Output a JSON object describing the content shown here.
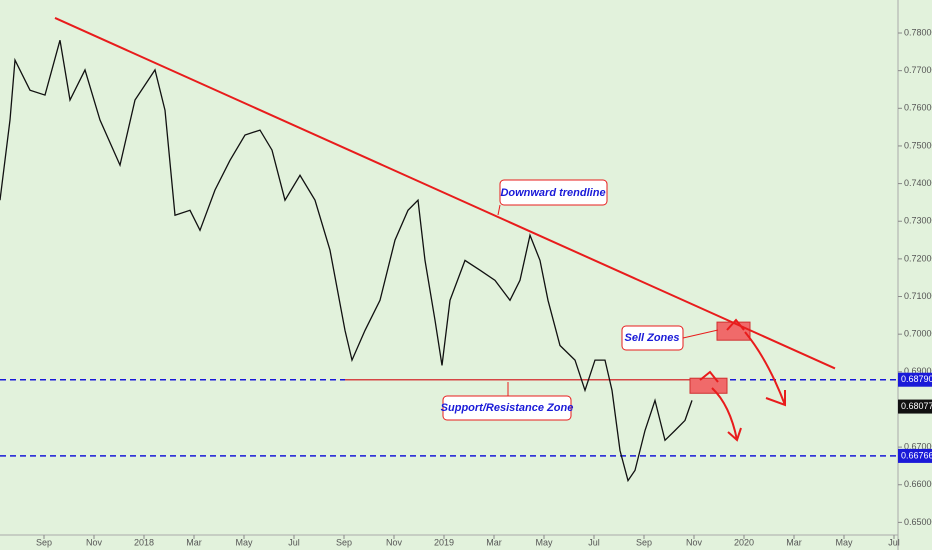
{
  "chart_data": {
    "type": "line",
    "x": [
      -1.76,
      -1.36,
      -1.16,
      -0.56,
      0.04,
      0.64,
      1.04,
      1.64,
      2.24,
      3.04,
      3.64,
      4.44,
      4.84,
      5.24,
      5.84,
      6.24,
      6.84,
      7.44,
      8.04,
      8.64,
      9.12,
      9.64,
      10.24,
      10.84,
      11.44,
      12.04,
      12.32,
      12.84,
      13.44,
      14.04,
      14.56,
      14.96,
      15.24,
      15.64,
      15.92,
      16.24,
      16.84,
      17.44,
      18.04,
      18.64,
      19.04,
      19.44,
      19.84,
      20.16,
      20.64,
      21.24,
      21.64,
      22.04,
      22.44,
      22.72,
      23.04,
      23.36,
      23.64,
      24.04,
      24.44,
      24.84,
      25.24,
      25.64,
      25.92
    ],
    "series": [
      {
        "color": "#111111",
        "values": [
          0.7356,
          0.7569,
          0.7728,
          0.7648,
          0.7635,
          0.7781,
          0.7622,
          0.7702,
          0.7569,
          0.7449,
          0.7622,
          0.7702,
          0.7595,
          0.7316,
          0.7329,
          0.7276,
          0.7383,
          0.7462,
          0.7529,
          0.7542,
          0.7489,
          0.7356,
          0.7422,
          0.7356,
          0.7223,
          0.701,
          0.6931,
          0.701,
          0.709,
          0.725,
          0.7329,
          0.7356,
          0.7196,
          0.7037,
          0.6917,
          0.709,
          0.7196,
          0.717,
          0.7143,
          0.709,
          0.7143,
          0.7263,
          0.7196,
          0.709,
          0.697,
          0.6931,
          0.6851,
          0.6931,
          0.6931,
          0.6851,
          0.6691,
          0.6611,
          0.6638,
          0.6744,
          0.6824,
          0.6718,
          0.6744,
          0.6771,
          0.6824
        ]
      }
    ],
    "xlim": [
      -1.76,
      34.16
    ],
    "xticks": [
      {
        "value": 0,
        "label": "Sep"
      },
      {
        "value": 2,
        "label": "Nov"
      },
      {
        "value": 4,
        "label": "2018"
      },
      {
        "value": 6,
        "label": "Mar"
      },
      {
        "value": 8,
        "label": "May"
      },
      {
        "value": 10,
        "label": "Jul"
      },
      {
        "value": 12,
        "label": "Sep"
      },
      {
        "value": 14,
        "label": "Nov"
      },
      {
        "value": 16,
        "label": "2019"
      },
      {
        "value": 18,
        "label": "Mar"
      },
      {
        "value": 20,
        "label": "May"
      },
      {
        "value": 22,
        "label": "Jul"
      },
      {
        "value": 24,
        "label": "Sep"
      },
      {
        "value": 26,
        "label": "Nov"
      },
      {
        "value": 28,
        "label": "2020"
      },
      {
        "value": 30,
        "label": "Mar"
      },
      {
        "value": 32,
        "label": "May"
      },
      {
        "value": 34,
        "label": "Jul"
      }
    ],
    "ylim": [
      0.64665,
      0.78877
    ],
    "yticks": [
      {
        "value": 0.65,
        "label": "0.65000"
      },
      {
        "value": 0.66,
        "label": "0.66000"
      },
      {
        "value": 0.67,
        "label": "0.67000"
      },
      {
        "value": 0.68,
        "label": "0.68000"
      },
      {
        "value": 0.69,
        "label": "0.69000"
      },
      {
        "value": 0.7,
        "label": "0.70000"
      },
      {
        "value": 0.71,
        "label": "0.71000"
      },
      {
        "value": 0.72,
        "label": "0.72000"
      },
      {
        "value": 0.73,
        "label": "0.73000"
      },
      {
        "value": 0.74,
        "label": "0.74000"
      },
      {
        "value": 0.75,
        "label": "0.75000"
      },
      {
        "value": 0.76,
        "label": "0.76000"
      },
      {
        "value": 0.77,
        "label": "0.77000"
      },
      {
        "value": 0.78,
        "label": "0.78000"
      }
    ],
    "levels": [
      {
        "value": 0.6879,
        "label": "0.68790",
        "color": "#1a1ad8"
      },
      {
        "value": 0.66766,
        "label": "0.66766",
        "color": "#1a1ad8"
      }
    ],
    "last_price": {
      "value": 0.68077,
      "label": "0.68077",
      "color": "#111111"
    },
    "trendline": {
      "x": [
        0.44,
        31.64
      ],
      "values": [
        0.784,
        0.6909
      ],
      "color": "#e81c1c"
    },
    "support_line": {
      "x": [
        12.04,
        27.24
      ],
      "values": [
        0.6879,
        0.6879
      ],
      "color": "#d64545"
    },
    "zones": [
      {
        "x": [
          25.84,
          27.32
        ],
        "values": [
          0.6883,
          0.6843
        ]
      },
      {
        "x": [
          26.92,
          28.24
        ],
        "values": [
          0.7032,
          0.6984
        ]
      }
    ],
    "annotations": [
      "Downward trendline",
      "Sell Zones",
      "Support/Resistance Zone"
    ]
  }
}
